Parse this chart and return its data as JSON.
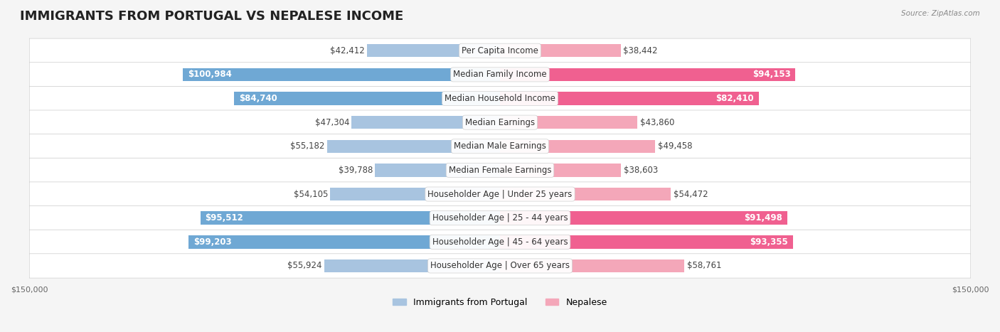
{
  "title": "IMMIGRANTS FROM PORTUGAL VS NEPALESE INCOME",
  "source": "Source: ZipAtlas.com",
  "categories": [
    "Per Capita Income",
    "Median Family Income",
    "Median Household Income",
    "Median Earnings",
    "Median Male Earnings",
    "Median Female Earnings",
    "Householder Age | Under 25 years",
    "Householder Age | 25 - 44 years",
    "Householder Age | 45 - 64 years",
    "Householder Age | Over 65 years"
  ],
  "portugal_values": [
    42412,
    100984,
    84740,
    47304,
    55182,
    39788,
    54105,
    95512,
    99203,
    55924
  ],
  "nepalese_values": [
    38442,
    94153,
    82410,
    43860,
    49458,
    38603,
    54472,
    91498,
    93355,
    58761
  ],
  "portugal_labels": [
    "$42,412",
    "$100,984",
    "$84,740",
    "$47,304",
    "$55,182",
    "$39,788",
    "$54,105",
    "$95,512",
    "$99,203",
    "$55,924"
  ],
  "nepalese_labels": [
    "$38,442",
    "$94,153",
    "$82,410",
    "$43,860",
    "$49,458",
    "$38,603",
    "$54,472",
    "$91,498",
    "$93,355",
    "$58,761"
  ],
  "portugal_color_light": "#a8c4e0",
  "portugal_color_dark": "#6fa8d4",
  "nepalese_color_light": "#f4a7b9",
  "nepalese_color_dark": "#f06090",
  "background_color": "#f5f5f5",
  "row_bg_color": "#ffffff",
  "max_value": 150000,
  "legend_portugal": "Immigrants from Portugal",
  "legend_nepalese": "Nepalese",
  "title_fontsize": 13,
  "label_fontsize": 8.5,
  "category_fontsize": 8.5,
  "axis_fontsize": 8
}
